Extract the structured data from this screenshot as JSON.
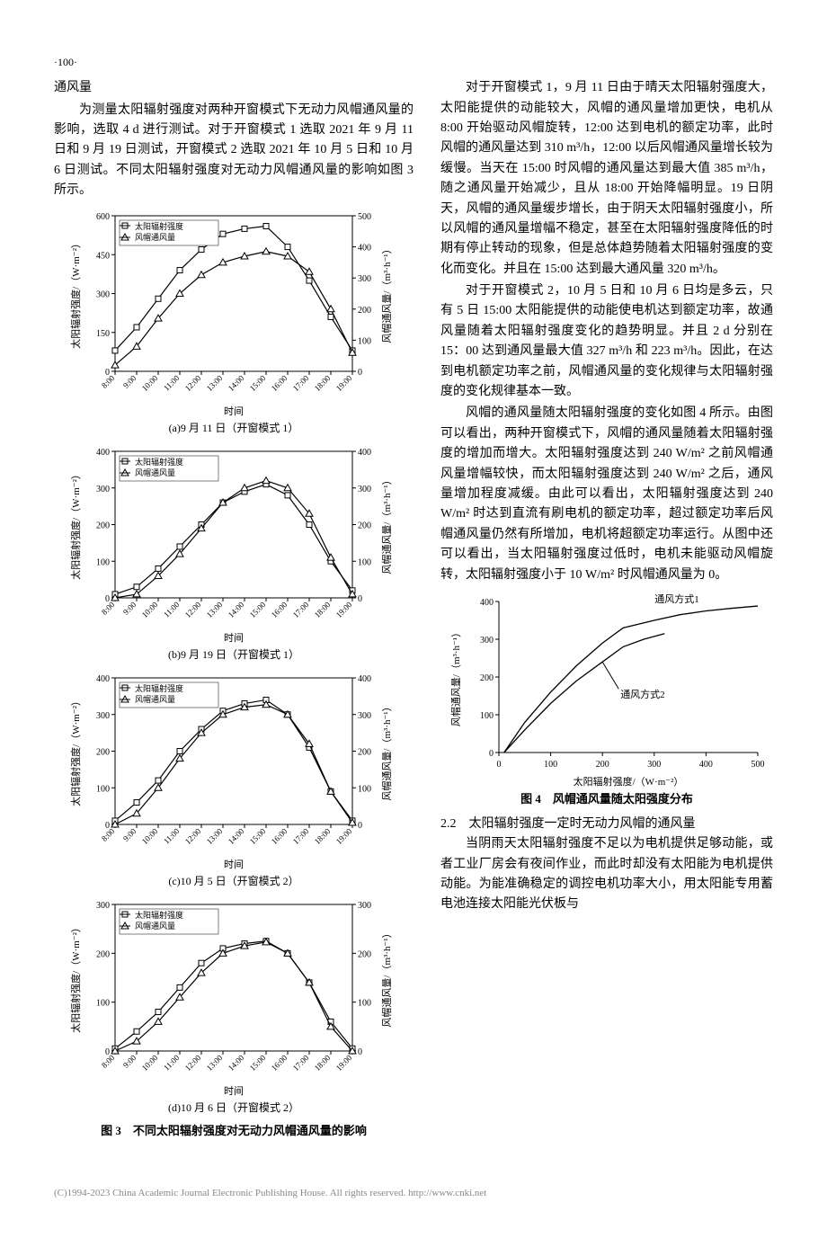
{
  "page_number": "·100·",
  "left_col": {
    "heading": "通风量",
    "para1": "为测量太阳辐射强度对两种开窗模式下无动力风帽通风量的影响，选取 4 d 进行测试。对于开窗模式 1 选取 2021 年 9 月 11 日和 9 月 19 日测试，开窗模式 2 选取 2021 年 10 月 5 日和 10 月 6 日测试。不同太阳辐射强度对无动力风帽通风量的影响如图 3 所示。",
    "fig3_caption": "图 3　不同太阳辐射强度对无动力风帽通风量的影响"
  },
  "right_col": {
    "para1": "对于开窗模式 1，9 月 11 日由于晴天太阳辐射强度大，太阳能提供的动能较大，风帽的通风量增加更快，电机从 8:00 开始驱动风帽旋转，12:00 达到电机的额定功率，此时风帽的通风量达到 310 m³/h，12:00 以后风帽通风量增长较为缓慢。当天在 15:00 时风帽的通风量达到最大值 385 m³/h，随之通风量开始减少，且从 18:00 开始降幅明显。19 日阴天，风帽的通风量缓步增长，由于阴天太阳辐射强度小，所以风帽的通风量增幅不稳定，甚至在太阳辐射强度降低的时期有停止转动的现象，但是总体趋势随着太阳辐射强度的变化而变化。并且在 15:00 达到最大通风量 320 m³/h。",
    "para2": "对于开窗模式 2，10 月 5 日和 10 月 6 日均是多云，只有 5 日 15:00 太阳能提供的动能使电机达到额定功率，故通风量随着太阳辐射强度变化的趋势明显。并且 2 d 分别在 15：00 达到通风量最大值 327 m³/h 和 223 m³/h。因此，在达到电机额定功率之前，风帽通风量的变化规律与太阳辐射强度的变化规律基本一致。",
    "para3": "风帽的通风量随太阳辐射强度的变化如图 4 所示。由图可以看出，两种开窗模式下，风帽的通风量随着太阳辐射强度的增加而增大。太阳辐射强度达到 240 W/m² 之前风帽通风量增幅较快，而太阳辐射强度达到 240 W/m² 之后，通风量增加程度减缓。由此可以看出，太阳辐射强度达到 240 W/m² 时达到直流有刷电机的额定功率，超过额定功率后风帽通风量仍然有所增加，电机将超额定功率运行。从图中还可以看出，当太阳辐射强度过低时，电机未能驱动风帽旋转，太阳辐射强度小于 10 W/m² 时风帽通风量为 0。",
    "fig4_caption": "图 4　风帽通风量随太阳强度分布",
    "sec22_head": "2.2　太阳辐射强度一定时无动力风帽的通风量",
    "para4": "当阴雨天太阳辐射强度不足以为电机提供足够动能，或者工业厂房会有夜间作业，而此时却没有太阳能为电机提供动能。为能准确稳定的调控电机功率大小，用太阳能专用蓄电池连接太阳能光伏板与"
  },
  "charts": {
    "time_labels": [
      "8:00",
      "9:00",
      "10:00",
      "11:00",
      "12:00",
      "13:00",
      "14:00",
      "15:00",
      "16:00",
      "17:00",
      "18:00",
      "19:00"
    ],
    "legend_solar": "太阳辐射强度",
    "legend_vent": "风帽通风量",
    "y_left_label": "太阳辐射强度/（W·m⁻²）",
    "y_right_label": "风帽通风量/（m³·h⁻¹）",
    "x_label": "时间",
    "color_line": "#000000",
    "color_bg": "#ffffff",
    "color_grid": "#000000",
    "marker_solar": "square",
    "marker_vent": "triangle",
    "chart_a": {
      "sub": "(a)9 月 11 日（开窗模式 1）",
      "y_left_max": 600,
      "y_left_step": 150,
      "y_right_max": 500,
      "y_right_step": 100,
      "solar": [
        80,
        170,
        280,
        390,
        470,
        530,
        550,
        560,
        480,
        350,
        210,
        80
      ],
      "vent": [
        20,
        80,
        170,
        250,
        310,
        350,
        370,
        385,
        370,
        320,
        200,
        60
      ]
    },
    "chart_b": {
      "sub": "(b)9 月 19 日（开窗模式 1）",
      "y_left_max": 400,
      "y_left_step": 100,
      "y_right_max": 400,
      "y_right_step": 100,
      "solar": [
        10,
        30,
        80,
        140,
        200,
        260,
        290,
        310,
        280,
        200,
        100,
        20
      ],
      "vent": [
        0,
        10,
        60,
        120,
        190,
        260,
        300,
        320,
        300,
        230,
        110,
        10
      ]
    },
    "chart_c": {
      "sub": "(c)10 月 5 日（开窗模式 2）",
      "y_left_max": 400,
      "y_left_step": 100,
      "y_right_max": 400,
      "y_right_step": 100,
      "solar": [
        10,
        60,
        120,
        200,
        260,
        310,
        330,
        340,
        300,
        210,
        90,
        10
      ],
      "vent": [
        0,
        30,
        100,
        180,
        250,
        300,
        320,
        327,
        300,
        220,
        90,
        5
      ]
    },
    "chart_d": {
      "sub": "(d)10 月 6 日（开窗模式 2）",
      "y_left_max": 300,
      "y_left_step": 100,
      "y_right_max": 300,
      "y_right_step": 100,
      "solar": [
        5,
        40,
        80,
        130,
        180,
        210,
        220,
        225,
        200,
        140,
        60,
        5
      ],
      "vent": [
        0,
        20,
        60,
        110,
        160,
        200,
        215,
        223,
        200,
        140,
        50,
        0
      ]
    },
    "fig4": {
      "x_label": "太阳辐射强度/（W·m⁻²）",
      "y_label": "风帽通风量/（m³·h⁻¹）",
      "x_max": 500,
      "x_step": 100,
      "y_max": 400,
      "y_step": 100,
      "label1": "通风方式1",
      "label2": "通风方式2",
      "series1_x": [
        10,
        50,
        100,
        150,
        200,
        240,
        300,
        350,
        400,
        450,
        500
      ],
      "series1_y": [
        0,
        80,
        160,
        230,
        290,
        330,
        350,
        365,
        375,
        382,
        388
      ],
      "series2_x": [
        10,
        50,
        100,
        150,
        200,
        240,
        280,
        320
      ],
      "series2_y": [
        0,
        60,
        130,
        190,
        240,
        280,
        300,
        315
      ]
    }
  },
  "footer": "(C)1994-2023 China Academic Journal Electronic Publishing House. All rights reserved.    http://www.cnki.net"
}
